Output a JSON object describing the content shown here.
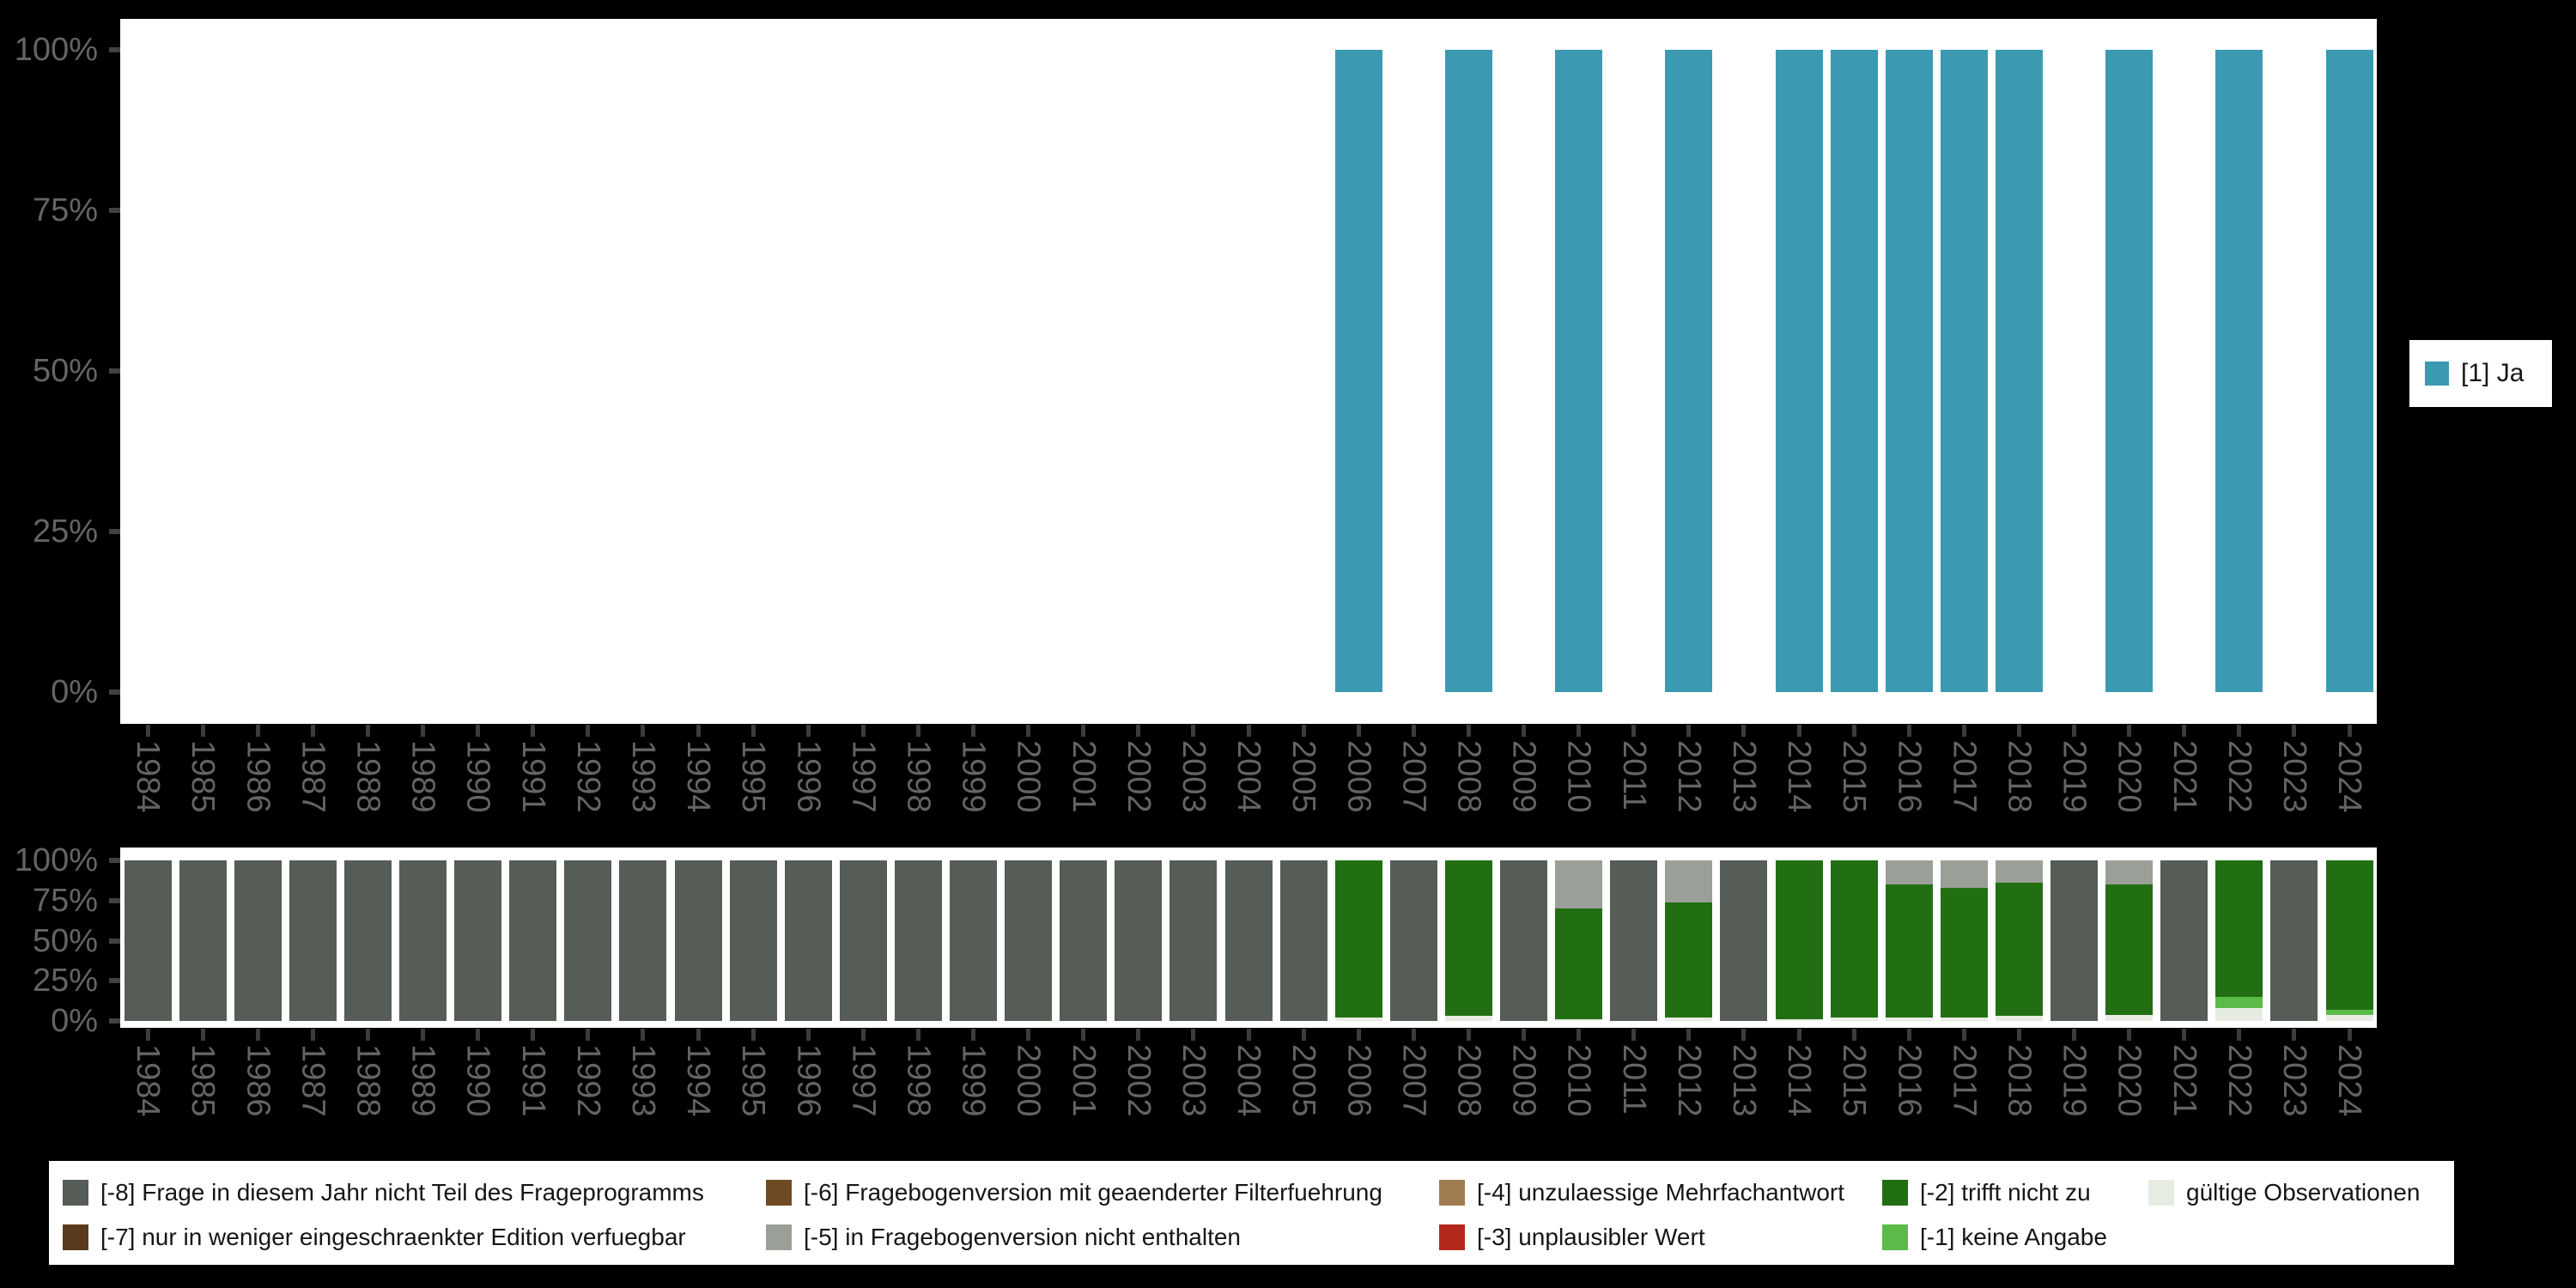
{
  "background": "#000000",
  "panel_background": "#FFFFFF",
  "axis": {
    "tick_color": "#3f3f3f",
    "label_color": "#646464"
  },
  "colors": {
    "ja": "#3C99B2",
    "-8": "#565C56",
    "-7": "#5A3A1E",
    "-6": "#6F4A22",
    "-5": "#9AA098",
    "-4": "#A07C50",
    "-3": "#B3271D",
    "-2": "#216E13",
    "-1": "#5BBB49",
    "valid": "#E7ECE3"
  },
  "chart_data": [
    {
      "type": "bar",
      "name": "frequencies-by-wave",
      "title": "",
      "xlabel": "",
      "ylabel": "",
      "grid": false,
      "ylim": [
        0,
        100
      ],
      "y_ticks": [
        "100%",
        "75%",
        "50%",
        "25%",
        "0%"
      ],
      "categories": [
        "1984",
        "1985",
        "1986",
        "1987",
        "1988",
        "1989",
        "1990",
        "1991",
        "1992",
        "1993",
        "1994",
        "1995",
        "1996",
        "1997",
        "1998",
        "1999",
        "2000",
        "2001",
        "2002",
        "2003",
        "2004",
        "2005",
        "2006",
        "2007",
        "2008",
        "2009",
        "2010",
        "2011",
        "2012",
        "2013",
        "2014",
        "2015",
        "2016",
        "2017",
        "2018",
        "2019",
        "2020",
        "2021",
        "2022",
        "2023",
        "2024"
      ],
      "legend_position": "right",
      "legend_items": [
        {
          "label": "[1] Ja",
          "color_key": "ja"
        }
      ],
      "series": [
        {
          "name": "[1] Ja",
          "color_key": "ja",
          "values": [
            0,
            0,
            0,
            0,
            0,
            0,
            0,
            0,
            0,
            0,
            0,
            0,
            0,
            0,
            0,
            0,
            0,
            0,
            0,
            0,
            0,
            0,
            100,
            0,
            100,
            0,
            100,
            0,
            100,
            0,
            100,
            100,
            100,
            100,
            100,
            0,
            100,
            0,
            100,
            0,
            100
          ]
        }
      ]
    },
    {
      "type": "stacked-bar",
      "name": "missings-by-wave",
      "title": "",
      "xlabel": "",
      "ylabel": "",
      "grid": false,
      "ylim": [
        0,
        100
      ],
      "y_ticks": [
        "100%",
        "75%",
        "50%",
        "25%",
        "0%"
      ],
      "categories": [
        "1984",
        "1985",
        "1986",
        "1987",
        "1988",
        "1989",
        "1990",
        "1991",
        "1992",
        "1993",
        "1994",
        "1995",
        "1996",
        "1997",
        "1998",
        "1999",
        "2000",
        "2001",
        "2002",
        "2003",
        "2004",
        "2005",
        "2006",
        "2007",
        "2008",
        "2009",
        "2010",
        "2011",
        "2012",
        "2013",
        "2014",
        "2015",
        "2016",
        "2017",
        "2018",
        "2019",
        "2020",
        "2021",
        "2022",
        "2023",
        "2024"
      ],
      "legend_position": "bottom",
      "legend_items": [
        {
          "code": "-8",
          "label": "[-8] Frage in diesem Jahr nicht Teil des Frageprogramms",
          "color_key": "-8"
        },
        {
          "code": "-7",
          "label": "[-7] nur in weniger eingeschraenkter Edition verfuegbar",
          "color_key": "-7"
        },
        {
          "code": "-6",
          "label": "[-6] Fragebogenversion mit geaenderter Filterfuehrung",
          "color_key": "-6"
        },
        {
          "code": "-5",
          "label": "[-5] in Fragebogenversion nicht enthalten",
          "color_key": "-5"
        },
        {
          "code": "-4",
          "label": "[-4] unzulaessige Mehrfachantwort",
          "color_key": "-4"
        },
        {
          "code": "-3",
          "label": "[-3] unplausibler Wert",
          "color_key": "-3"
        },
        {
          "code": "-2",
          "label": "[-2] trifft nicht zu",
          "color_key": "-2"
        },
        {
          "code": "-1",
          "label": "[-1] keine Angabe",
          "color_key": "-1"
        },
        {
          "code": "valid",
          "label": "gültige Observationen",
          "color_key": "valid"
        }
      ],
      "stacks": [
        [
          [
            "-8",
            100
          ]
        ],
        [
          [
            "-8",
            100
          ]
        ],
        [
          [
            "-8",
            100
          ]
        ],
        [
          [
            "-8",
            100
          ]
        ],
        [
          [
            "-8",
            100
          ]
        ],
        [
          [
            "-8",
            100
          ]
        ],
        [
          [
            "-8",
            100
          ]
        ],
        [
          [
            "-8",
            100
          ]
        ],
        [
          [
            "-8",
            100
          ]
        ],
        [
          [
            "-8",
            100
          ]
        ],
        [
          [
            "-8",
            100
          ]
        ],
        [
          [
            "-8",
            100
          ]
        ],
        [
          [
            "-8",
            100
          ]
        ],
        [
          [
            "-8",
            100
          ]
        ],
        [
          [
            "-8",
            100
          ]
        ],
        [
          [
            "-8",
            100
          ]
        ],
        [
          [
            "-8",
            100
          ]
        ],
        [
          [
            "-8",
            100
          ]
        ],
        [
          [
            "-8",
            100
          ]
        ],
        [
          [
            "-8",
            100
          ]
        ],
        [
          [
            "-8",
            100
          ]
        ],
        [
          [
            "-8",
            100
          ]
        ],
        [
          [
            "-2",
            98
          ],
          [
            "valid",
            2
          ]
        ],
        [
          [
            "-8",
            100
          ]
        ],
        [
          [
            "-2",
            97
          ],
          [
            "valid",
            3
          ]
        ],
        [
          [
            "-8",
            100
          ]
        ],
        [
          [
            "-5",
            30
          ],
          [
            "-2",
            69
          ],
          [
            "valid",
            1
          ]
        ],
        [
          [
            "-8",
            100
          ]
        ],
        [
          [
            "-5",
            26
          ],
          [
            "-2",
            72
          ],
          [
            "valid",
            2
          ]
        ],
        [
          [
            "-8",
            100
          ]
        ],
        [
          [
            "-2",
            99
          ],
          [
            "valid",
            1
          ]
        ],
        [
          [
            "-2",
            98
          ],
          [
            "valid",
            2
          ]
        ],
        [
          [
            "-5",
            15
          ],
          [
            "-2",
            83
          ],
          [
            "valid",
            2
          ]
        ],
        [
          [
            "-5",
            17
          ],
          [
            "-2",
            81
          ],
          [
            "valid",
            2
          ]
        ],
        [
          [
            "-5",
            14
          ],
          [
            "-2",
            83
          ],
          [
            "valid",
            3
          ]
        ],
        [
          [
            "-8",
            100
          ]
        ],
        [
          [
            "-5",
            15
          ],
          [
            "-2",
            81
          ],
          [
            "valid",
            4
          ]
        ],
        [
          [
            "-8",
            100
          ]
        ],
        [
          [
            "-2",
            85
          ],
          [
            "-1",
            7
          ],
          [
            "valid",
            8
          ]
        ],
        [
          [
            "-8",
            100
          ]
        ],
        [
          [
            "-2",
            93
          ],
          [
            "-1",
            3
          ],
          [
            "valid",
            4
          ]
        ]
      ]
    }
  ]
}
